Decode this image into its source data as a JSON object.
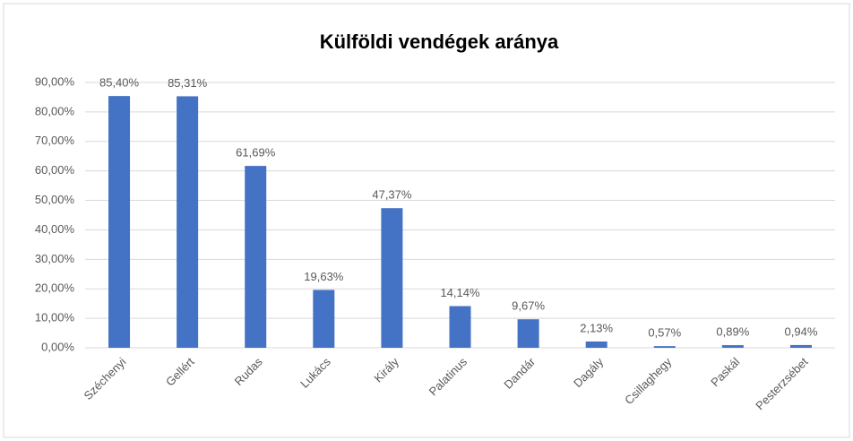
{
  "chart_data": {
    "type": "bar",
    "title": "Külföldi  vendégek aránya",
    "categories": [
      "Széchenyi",
      "Gellért",
      "Rudas",
      "Lukács",
      "Király",
      "Palatinus",
      "Dandár",
      "Dagály",
      "Csillaghegy",
      "Paskál",
      "Pesterzsébet"
    ],
    "values": [
      85.4,
      85.31,
      61.69,
      19.63,
      47.37,
      14.14,
      9.67,
      2.13,
      0.57,
      0.89,
      0.94
    ],
    "value_labels": [
      "85,40%",
      "85,31%",
      "61,69%",
      "19,63%",
      "47,37%",
      "14,14%",
      "9,67%",
      "2,13%",
      "0,57%",
      "0,89%",
      "0,94%"
    ],
    "color": "#4472c4",
    "ylim": [
      0,
      90
    ],
    "yticks": [
      {
        "value": 0,
        "label": "0,00%"
      },
      {
        "value": 10,
        "label": "10,00%"
      },
      {
        "value": 20,
        "label": "20,00%"
      },
      {
        "value": 30,
        "label": "30,00%"
      },
      {
        "value": 40,
        "label": "40,00%"
      },
      {
        "value": 50,
        "label": "50,00%"
      },
      {
        "value": 60,
        "label": "60,00%"
      },
      {
        "value": 70,
        "label": "70,00%"
      },
      {
        "value": 80,
        "label": "80,00%"
      },
      {
        "value": 90,
        "label": "90,00%"
      }
    ],
    "grid": true
  }
}
